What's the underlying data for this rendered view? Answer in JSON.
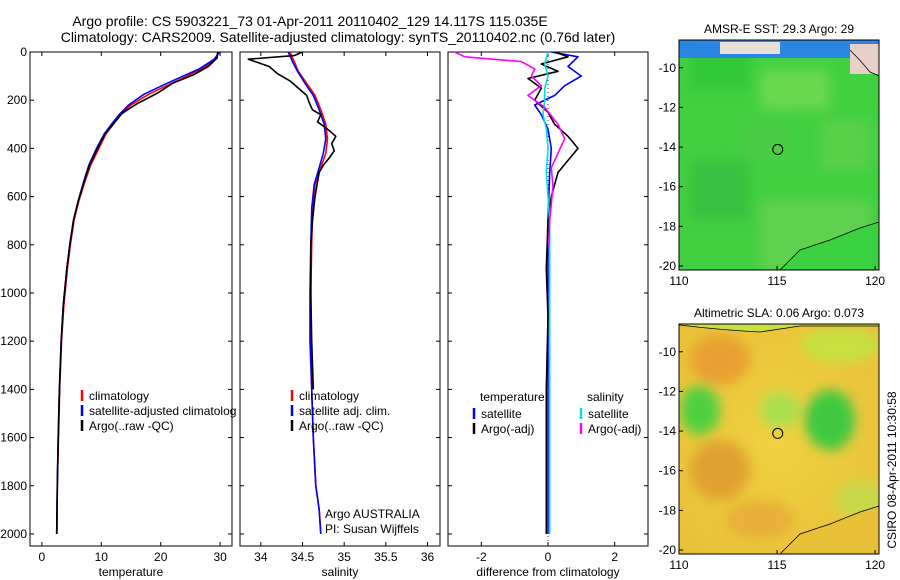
{
  "figure": {
    "title_line1": "Argo profile: CS 5903221_73 01-Apr-2011 20110402_129 14.117S 115.035E",
    "title_line2": "Climatology: CARS2009. Satellite-adjusted climatology: synTS_20110402.nc (0.76d later)",
    "footer_right": "CSIRO 08-Apr-2011 10:30:58"
  },
  "chart_data": [
    {
      "id": "temperature",
      "type": "line",
      "xlabel": "temperature",
      "xlim": [
        -2,
        32
      ],
      "ylim": [
        0,
        2050
      ],
      "yreverse": true,
      "xticks": [
        0,
        10,
        20,
        30
      ],
      "yticks": [
        0,
        200,
        400,
        600,
        800,
        1000,
        1200,
        1400,
        1600,
        1800,
        2000
      ],
      "legend": [
        "climatology",
        "satellite-adjusted climatolog",
        "Argo(..raw -QC)"
      ],
      "series": [
        {
          "name": "climatology",
          "color": "#ff0000",
          "x": [
            29.8,
            29.2,
            27.0,
            24.0,
            21.0,
            18.0,
            15.0,
            13.2,
            12.0,
            10.8,
            9.6,
            8.2,
            7.2,
            6.2,
            5.4,
            4.8,
            4.3,
            3.7,
            3.3,
            3.0,
            2.8,
            2.6,
            2.55
          ],
          "y": [
            0,
            30,
            70,
            105,
            140,
            175,
            220,
            260,
            300,
            340,
            400,
            470,
            540,
            620,
            700,
            800,
            900,
            1050,
            1200,
            1400,
            1600,
            1800,
            2000
          ]
        },
        {
          "name": "satellite-adjusted climatolog",
          "color": "#0000ff",
          "x": [
            29.9,
            29.0,
            26.5,
            23.3,
            20.2,
            17.2,
            14.6,
            13.0,
            11.7,
            10.5,
            9.2,
            7.9,
            7.0,
            6.1,
            5.3,
            4.7,
            4.2,
            3.6,
            3.25,
            2.95,
            2.75,
            2.6,
            2.5
          ],
          "y": [
            0,
            30,
            70,
            105,
            140,
            175,
            220,
            260,
            300,
            340,
            400,
            470,
            540,
            620,
            700,
            800,
            900,
            1050,
            1200,
            1400,
            1600,
            1800,
            2000
          ]
        },
        {
          "name": "Argo(..raw -QC)",
          "color": "#000000",
          "x": [
            29.6,
            29.5,
            28.0,
            25.5,
            22.0,
            19.5,
            16.0,
            13.5,
            12.0,
            10.6,
            9.4,
            8.0,
            7.1,
            6.1,
            5.3,
            4.7,
            4.2,
            3.6,
            3.25,
            2.95,
            2.75,
            2.6,
            2.5
          ],
          "y": [
            0,
            25,
            60,
            95,
            130,
            170,
            215,
            255,
            300,
            340,
            400,
            470,
            540,
            620,
            700,
            800,
            900,
            1050,
            1200,
            1400,
            1600,
            1800,
            2000
          ]
        }
      ]
    },
    {
      "id": "salinity",
      "type": "line",
      "xlabel": "salinity",
      "xlim": [
        33.75,
        36.15
      ],
      "ylim": [
        0,
        2050
      ],
      "yreverse": true,
      "xticks": [
        34,
        34.5,
        35,
        35.5,
        36
      ],
      "xticklabels": [
        "34",
        "34.5",
        "35",
        "35.5",
        "36"
      ],
      "legend": [
        "climatology",
        "satellite adj. clim.",
        "Argo(..raw -QC)"
      ],
      "annotation": [
        "Argo AUSTRALIA",
        "PI: Susan Wijffels"
      ],
      "series": [
        {
          "name": "climatology",
          "color": "#ff0000",
          "x": [
            34.35,
            34.4,
            34.45,
            34.55,
            34.65,
            34.72,
            34.78,
            34.8,
            34.78,
            34.72,
            34.65,
            34.62,
            34.61,
            34.6,
            34.6,
            34.61,
            34.63,
            34.66,
            34.7,
            34.72
          ],
          "y": [
            0,
            40,
            80,
            130,
            180,
            240,
            300,
            360,
            420,
            480,
            550,
            650,
            800,
            1000,
            1200,
            1400,
            1600,
            1800,
            1900,
            2000
          ]
        },
        {
          "name": "satellite adj. clim.",
          "color": "#0000ff",
          "x": [
            34.33,
            34.38,
            34.44,
            34.53,
            34.63,
            34.7,
            34.76,
            34.78,
            34.75,
            34.7,
            34.64,
            34.61,
            34.6,
            34.59,
            34.59,
            34.61,
            34.63,
            34.66,
            34.7,
            34.72
          ],
          "y": [
            0,
            40,
            80,
            130,
            180,
            240,
            300,
            360,
            420,
            480,
            550,
            650,
            800,
            1000,
            1200,
            1400,
            1600,
            1800,
            1900,
            2000
          ]
        },
        {
          "name": "Argo(..raw -QC)",
          "color": "#000000",
          "x": [
            34.5,
            34.4,
            33.85,
            34.1,
            34.2,
            34.35,
            34.45,
            34.55,
            34.58,
            34.62,
            34.72,
            34.68,
            34.8,
            34.9,
            34.85,
            34.88,
            34.82,
            34.75,
            34.7,
            34.68,
            34.65,
            34.62,
            34.6,
            34.6,
            34.61,
            34.63
          ],
          "y": [
            0,
            15,
            30,
            60,
            90,
            120,
            150,
            180,
            210,
            240,
            260,
            290,
            320,
            350,
            380,
            410,
            440,
            470,
            500,
            540,
            600,
            700,
            800,
            1000,
            1200,
            1400
          ]
        }
      ]
    },
    {
      "id": "difference",
      "type": "line",
      "xlabel": "difference from climatology",
      "xlim": [
        -3.0,
        3.0
      ],
      "ylim": [
        0,
        2050
      ],
      "yreverse": true,
      "xticks": [
        -2,
        0,
        2
      ],
      "legend_left": {
        "heading": "temperature",
        "items": [
          "satellite",
          "Argo(-adj)"
        ]
      },
      "legend_right": {
        "heading": "salinity",
        "items": [
          "satellite",
          "Argo(-adj)"
        ]
      },
      "series": [
        {
          "name": "temperature satellite",
          "color": "#0000ff",
          "x": [
            0.1,
            0.9,
            0.6,
            1.0,
            0.5,
            0.2,
            -0.4,
            -0.2,
            0.0,
            0.1,
            0.05,
            0.0,
            0.0,
            0.0,
            0.0,
            0.0
          ],
          "y": [
            0,
            20,
            60,
            100,
            140,
            180,
            220,
            260,
            320,
            400,
            500,
            700,
            1000,
            1400,
            1800,
            2000
          ]
        },
        {
          "name": "temperature Argo(-adj)",
          "color": "#000000",
          "x": [
            0.2,
            0.6,
            -0.2,
            0.3,
            -0.6,
            -0.2,
            -0.4,
            0.0,
            0.2,
            0.6,
            0.9,
            0.6,
            0.3,
            0.1,
            0.0,
            -0.05,
            0.0,
            -0.05,
            -0.05,
            -0.05
          ],
          "y": [
            0,
            20,
            50,
            80,
            110,
            150,
            200,
            250,
            300,
            350,
            400,
            450,
            500,
            600,
            700,
            900,
            1100,
            1400,
            1700,
            2000
          ]
        },
        {
          "name": "salinity satellite",
          "color": "#00e0e0",
          "x": [
            0.0,
            -0.1,
            0.0,
            -0.1,
            -0.1,
            -0.15,
            -0.05,
            0.0,
            -0.05,
            0.05,
            0.05,
            0.05,
            0.05
          ],
          "y": [
            0,
            50,
            100,
            150,
            200,
            260,
            320,
            400,
            500,
            700,
            1000,
            1500,
            2000
          ]
        },
        {
          "name": "salinity Argo(-adj)",
          "color": "#ff00ff",
          "x": [
            -2.8,
            -2.5,
            -0.8,
            -0.4,
            -0.5,
            -0.2,
            -0.6,
            -0.1,
            0.3,
            0.5,
            0.3,
            0.1,
            0.15,
            0.05,
            0.02
          ],
          "y": [
            0,
            20,
            40,
            70,
            100,
            140,
            180,
            230,
            300,
            360,
            420,
            480,
            560,
            700,
            800
          ]
        }
      ]
    }
  ],
  "maps": [
    {
      "id": "sst",
      "title": "AMSR-E SST: 29.3 Argo: 29",
      "xlim": [
        110,
        120.2
      ],
      "ylim": [
        -20.2,
        -8.6
      ],
      "xticks": [
        110,
        115,
        120
      ],
      "yticks": [
        -10,
        -12,
        -14,
        -16,
        -18,
        -20
      ],
      "marker": {
        "lon": 115.035,
        "lat": -14.117
      }
    },
    {
      "id": "sla",
      "title": "Altimetric SLA: 0.06 Argo: 0.073",
      "xlim": [
        110,
        120.2
      ],
      "ylim": [
        -20.2,
        -8.6
      ],
      "xticks": [
        110,
        115,
        120
      ],
      "yticks": [
        -10,
        -12,
        -14,
        -16,
        -18,
        -20
      ],
      "marker": {
        "lon": 115.035,
        "lat": -14.117
      }
    }
  ]
}
